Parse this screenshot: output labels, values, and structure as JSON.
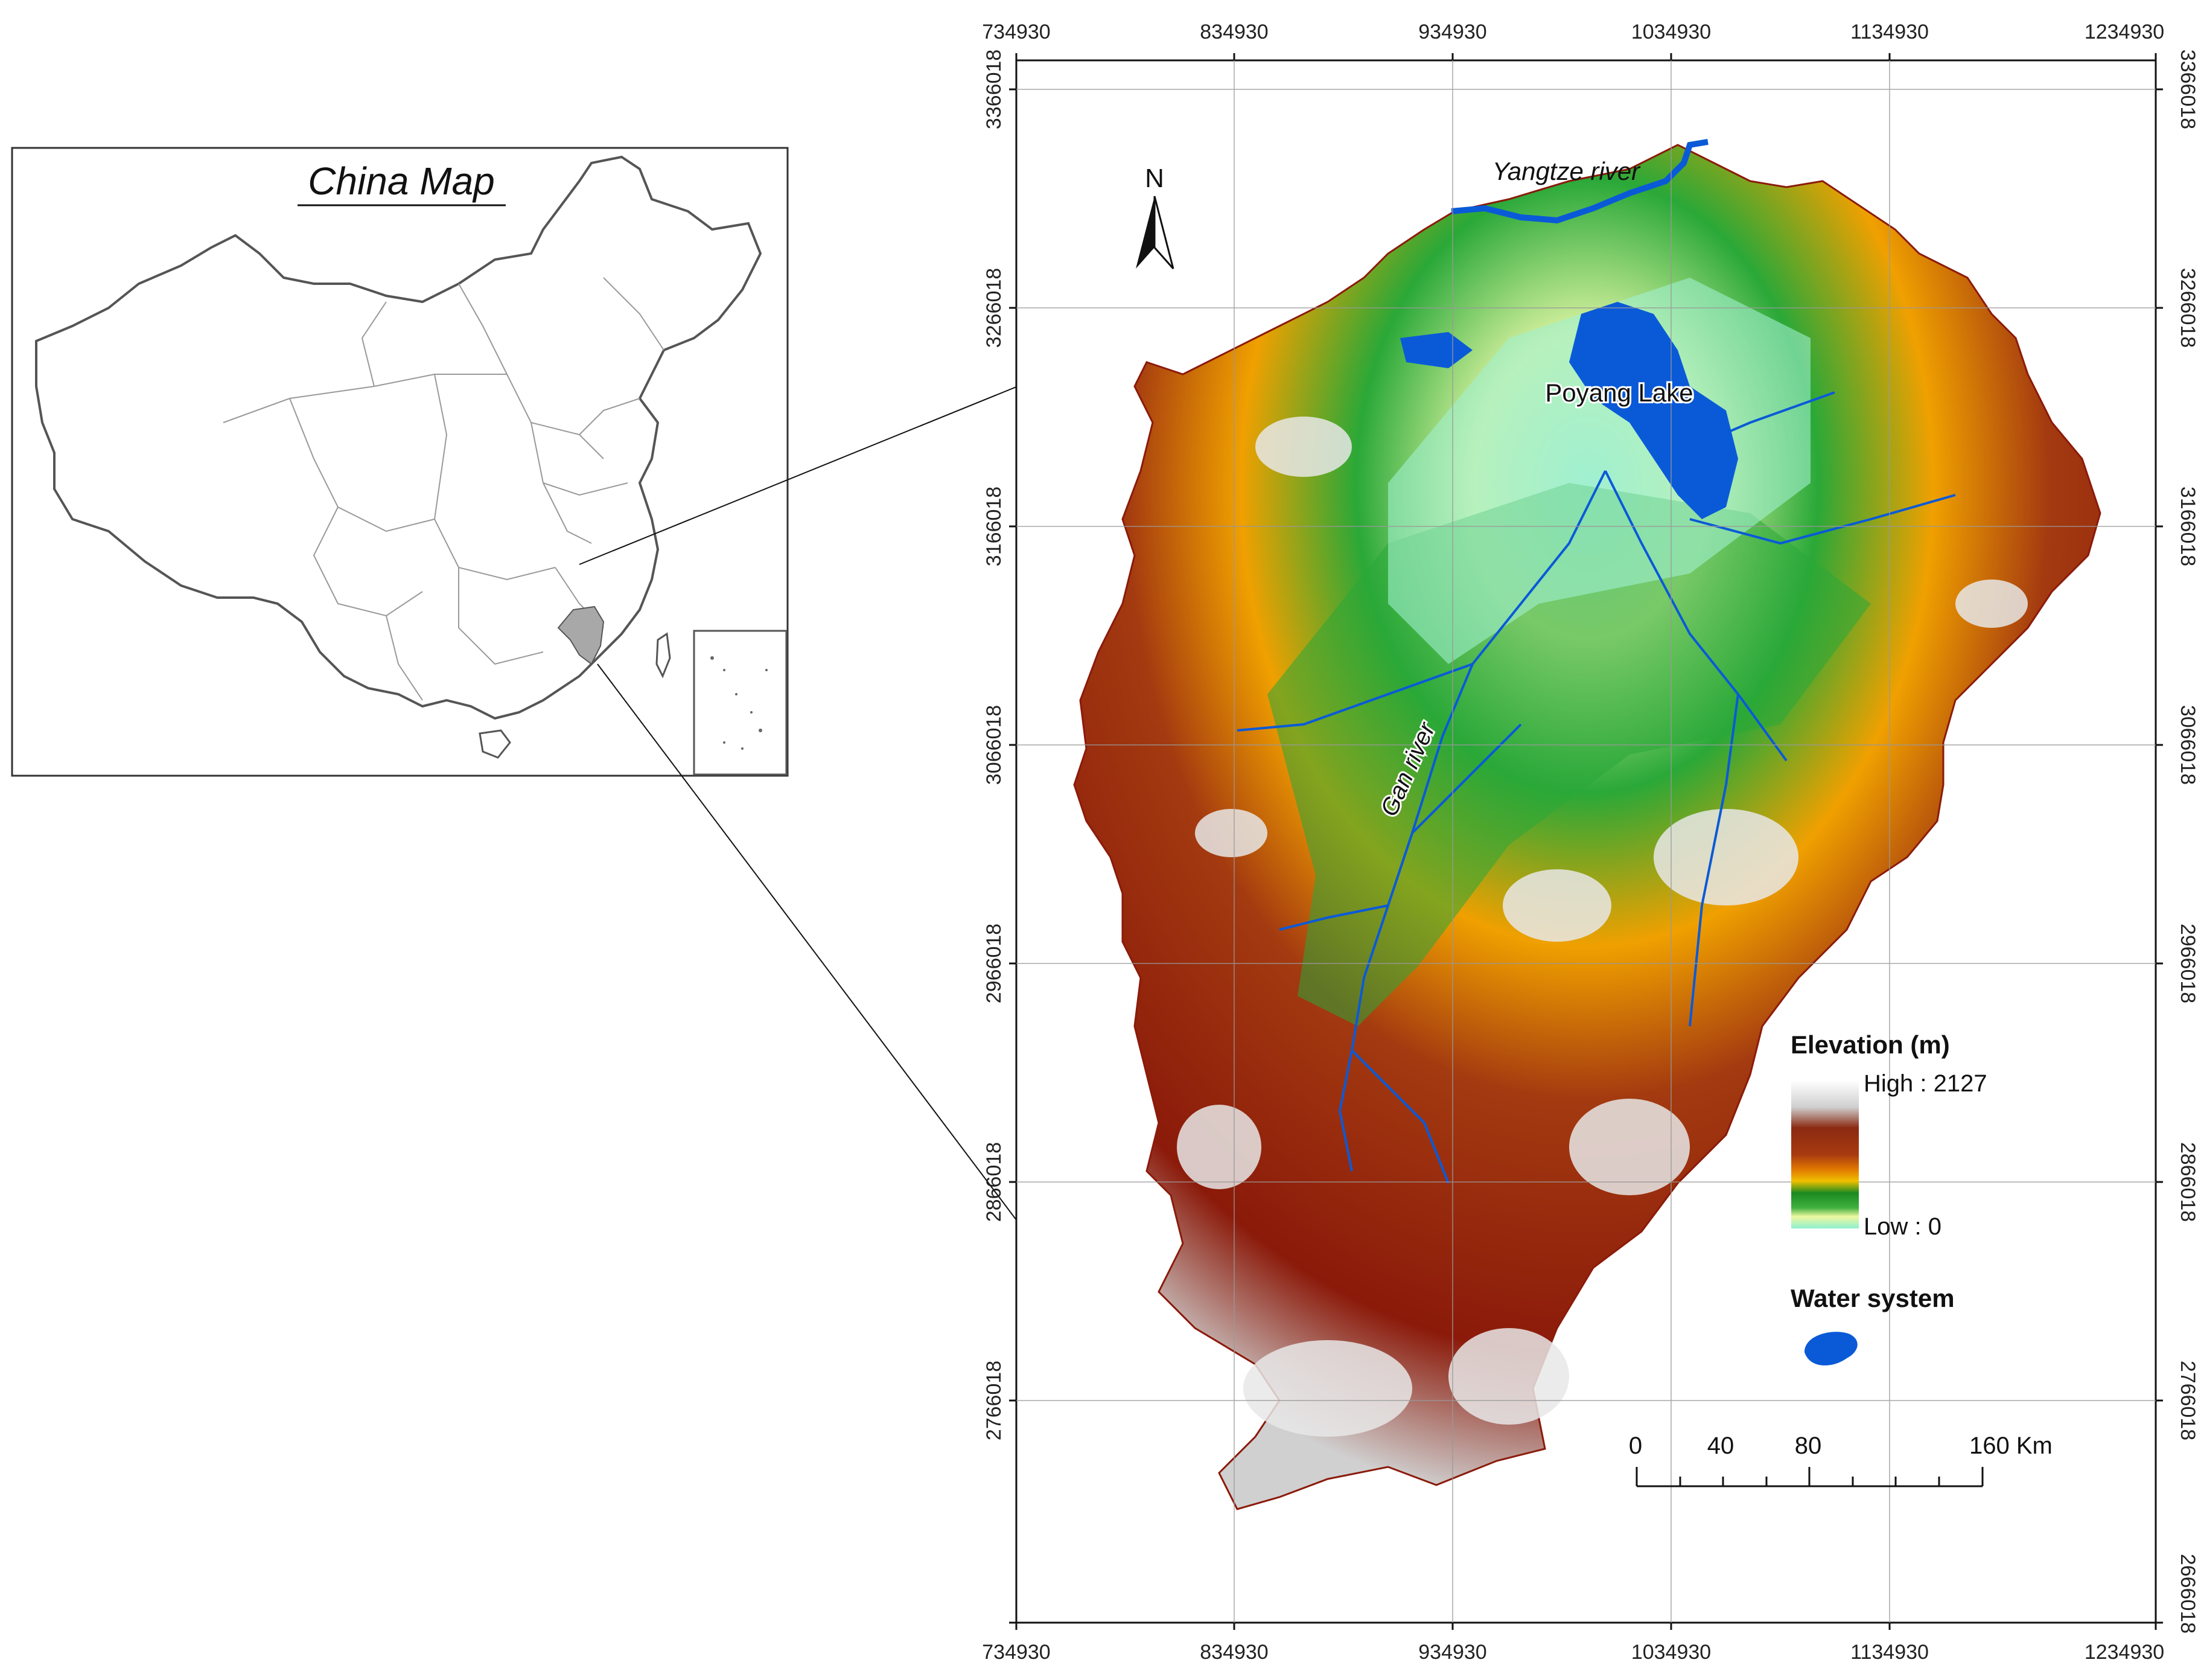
{
  "inset": {
    "title": "China Map"
  },
  "map": {
    "x_ticks": [
      "734930",
      "834930",
      "934930",
      "1034930",
      "1134930",
      "1234930"
    ],
    "y_ticks": [
      "3366018",
      "3266018",
      "3166018",
      "3066018",
      "2966018",
      "2866018",
      "2766018",
      "2666018"
    ],
    "north_label": "N",
    "labels": {
      "yangtze": "Yangtze river",
      "poyang": "Poyang Lake",
      "gan": "Gan river"
    }
  },
  "legend": {
    "elevation_title": "Elevation (m)",
    "high_label": "High : 2127",
    "low_label": "Low : 0",
    "water_title": "Water system",
    "colors": [
      "#ffffff",
      "#d8d8d8",
      "#8b1a0a",
      "#a33a10",
      "#d86a00",
      "#f0a000",
      "#9ab000",
      "#1a9a20",
      "#2aa838",
      "#e8f0a0",
      "#a0f0d0"
    ],
    "water_color": "#0a5ad8"
  },
  "scale_bar": {
    "labels": [
      "0",
      "40",
      "80",
      "160 Km"
    ]
  }
}
